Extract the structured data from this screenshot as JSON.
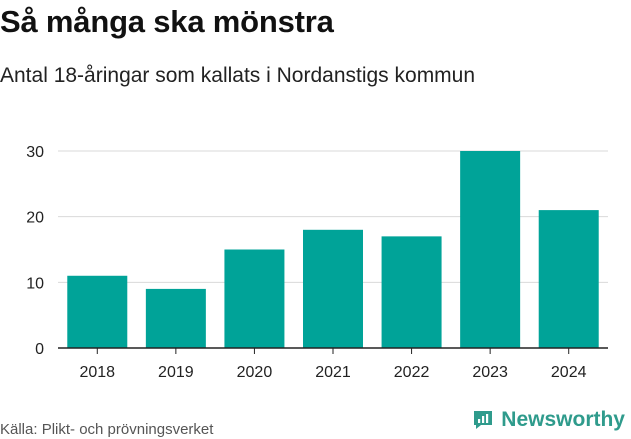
{
  "header": {
    "title": "Så många ska mönstra",
    "subtitle": "Antal 18-åringar som kallats i Nordanstigs kommun"
  },
  "footer": {
    "source": "Källa: Plikt- och prövningsverket",
    "brand": "Newsworthy"
  },
  "colors": {
    "bar": "#00a398",
    "grid": "#d9d9d9",
    "axis": "#222222",
    "brand": "#2f9b8c"
  },
  "chart_data": {
    "type": "bar",
    "title": "Så många ska mönstra",
    "subtitle": "Antal 18-åringar som kallats i Nordanstigs kommun",
    "categories": [
      "2018",
      "2019",
      "2020",
      "2021",
      "2022",
      "2023",
      "2024"
    ],
    "values": [
      11,
      9,
      15,
      18,
      17,
      30,
      21
    ],
    "xlabel": "",
    "ylabel": "",
    "ylim": [
      0,
      30
    ],
    "yticks": [
      0,
      10,
      20,
      30
    ],
    "grid": true,
    "legend": "none"
  }
}
